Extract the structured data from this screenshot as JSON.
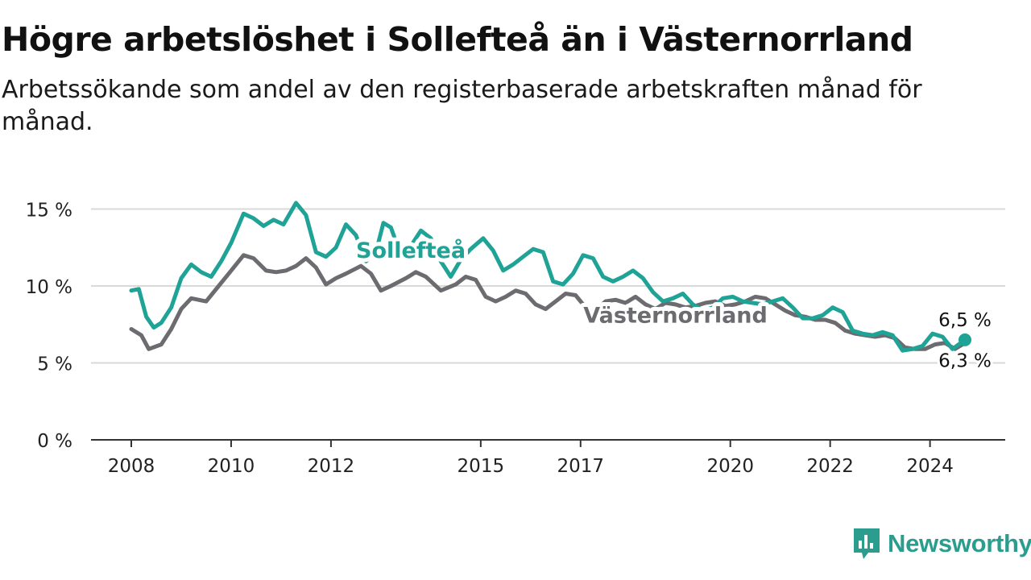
{
  "header": {
    "title": "Högre arbetslöshet i Sollefteå än i Västernorrland",
    "subtitle": "Arbetssökande som andel av den registerbaserade arbetskraften månad för månad."
  },
  "brand": {
    "name": "Newsworthy",
    "color": "#2a9d8f",
    "icon": "newsworthy-bar-chart-icon"
  },
  "chart_data": {
    "type": "line",
    "yticks": [
      "0 %",
      "5 %",
      "10 %",
      "15 %"
    ],
    "ytick_values": [
      0,
      5,
      10,
      15
    ],
    "xticks": [
      "2008",
      "2010",
      "2012",
      "2015",
      "2017",
      "2020",
      "2022",
      "2024"
    ],
    "ylim": [
      0,
      15.5
    ],
    "xlim": [
      2008,
      2024.7
    ],
    "grid": true,
    "series": [
      {
        "name": "Västernorrland",
        "color": "#6b6b70",
        "end_label": "6,3 %",
        "points": [
          [
            2008.0,
            7.2
          ],
          [
            2008.2,
            6.8
          ],
          [
            2008.35,
            5.9
          ],
          [
            2008.6,
            6.2
          ],
          [
            2008.8,
            7.2
          ],
          [
            2009.0,
            8.5
          ],
          [
            2009.2,
            9.2
          ],
          [
            2009.5,
            9.0
          ],
          [
            2009.75,
            10.0
          ],
          [
            2010.0,
            11.0
          ],
          [
            2010.25,
            12.0
          ],
          [
            2010.45,
            11.8
          ],
          [
            2010.7,
            11.0
          ],
          [
            2010.9,
            10.9
          ],
          [
            2011.1,
            11.0
          ],
          [
            2011.3,
            11.3
          ],
          [
            2011.5,
            11.8
          ],
          [
            2011.7,
            11.2
          ],
          [
            2011.9,
            10.1
          ],
          [
            2012.1,
            10.5
          ],
          [
            2012.3,
            10.8
          ],
          [
            2012.6,
            11.3
          ],
          [
            2012.8,
            10.8
          ],
          [
            2013.0,
            9.7
          ],
          [
            2013.2,
            10.0
          ],
          [
            2013.5,
            10.5
          ],
          [
            2013.7,
            10.9
          ],
          [
            2013.9,
            10.6
          ],
          [
            2014.2,
            9.7
          ],
          [
            2014.5,
            10.1
          ],
          [
            2014.7,
            10.6
          ],
          [
            2014.9,
            10.4
          ],
          [
            2015.1,
            9.3
          ],
          [
            2015.3,
            9.0
          ],
          [
            2015.5,
            9.3
          ],
          [
            2015.7,
            9.7
          ],
          [
            2015.9,
            9.5
          ],
          [
            2016.1,
            8.8
          ],
          [
            2016.3,
            8.5
          ],
          [
            2016.5,
            9.0
          ],
          [
            2016.7,
            9.5
          ],
          [
            2016.9,
            9.4
          ],
          [
            2017.1,
            8.6
          ],
          [
            2017.3,
            8.4
          ],
          [
            2017.5,
            9.0
          ],
          [
            2017.7,
            9.1
          ],
          [
            2017.9,
            8.9
          ],
          [
            2018.1,
            9.3
          ],
          [
            2018.3,
            8.8
          ],
          [
            2018.5,
            8.5
          ],
          [
            2018.7,
            8.9
          ],
          [
            2018.9,
            8.8
          ],
          [
            2019.1,
            8.6
          ],
          [
            2019.3,
            8.7
          ],
          [
            2019.5,
            8.9
          ],
          [
            2019.7,
            9.0
          ],
          [
            2019.9,
            8.7
          ],
          [
            2020.1,
            8.8
          ],
          [
            2020.3,
            9.0
          ],
          [
            2020.5,
            9.3
          ],
          [
            2020.7,
            9.2
          ],
          [
            2020.9,
            8.8
          ],
          [
            2021.1,
            8.4
          ],
          [
            2021.3,
            8.1
          ],
          [
            2021.5,
            8.0
          ],
          [
            2021.7,
            7.8
          ],
          [
            2021.9,
            7.8
          ],
          [
            2022.1,
            7.6
          ],
          [
            2022.3,
            7.1
          ],
          [
            2022.5,
            6.9
          ],
          [
            2022.7,
            6.8
          ],
          [
            2022.9,
            6.7
          ],
          [
            2023.1,
            6.8
          ],
          [
            2023.3,
            6.6
          ],
          [
            2023.5,
            6.0
          ],
          [
            2023.7,
            5.9
          ],
          [
            2023.9,
            5.9
          ],
          [
            2024.1,
            6.2
          ],
          [
            2024.3,
            6.3
          ],
          [
            2024.5,
            5.9
          ],
          [
            2024.7,
            6.3
          ]
        ]
      },
      {
        "name": "Sollefteå",
        "color": "#1fa396",
        "end_label": "6,5 %",
        "points": [
          [
            2008.0,
            9.7
          ],
          [
            2008.15,
            9.8
          ],
          [
            2008.3,
            8.0
          ],
          [
            2008.45,
            7.3
          ],
          [
            2008.6,
            7.6
          ],
          [
            2008.8,
            8.6
          ],
          [
            2009.0,
            10.5
          ],
          [
            2009.2,
            11.4
          ],
          [
            2009.4,
            10.9
          ],
          [
            2009.6,
            10.6
          ],
          [
            2009.8,
            11.6
          ],
          [
            2010.0,
            12.8
          ],
          [
            2010.25,
            14.7
          ],
          [
            2010.45,
            14.4
          ],
          [
            2010.65,
            13.9
          ],
          [
            2010.85,
            14.3
          ],
          [
            2011.05,
            14.0
          ],
          [
            2011.3,
            15.4
          ],
          [
            2011.5,
            14.6
          ],
          [
            2011.7,
            12.2
          ],
          [
            2011.9,
            11.9
          ],
          [
            2012.1,
            12.5
          ],
          [
            2012.3,
            14.0
          ],
          [
            2012.5,
            13.3
          ],
          [
            2012.7,
            11.6
          ],
          [
            2012.9,
            12.2
          ],
          [
            2013.05,
            14.1
          ],
          [
            2013.2,
            13.8
          ],
          [
            2013.4,
            12.0
          ],
          [
            2013.6,
            12.6
          ],
          [
            2013.8,
            13.6
          ],
          [
            2014.0,
            13.1
          ],
          [
            2014.2,
            11.6
          ],
          [
            2014.4,
            10.6
          ],
          [
            2014.6,
            11.7
          ],
          [
            2014.8,
            12.4
          ],
          [
            2015.05,
            13.1
          ],
          [
            2015.25,
            12.3
          ],
          [
            2015.45,
            11.0
          ],
          [
            2015.65,
            11.4
          ],
          [
            2015.85,
            11.9
          ],
          [
            2016.05,
            12.4
          ],
          [
            2016.25,
            12.2
          ],
          [
            2016.45,
            10.3
          ],
          [
            2016.65,
            10.1
          ],
          [
            2016.85,
            10.8
          ],
          [
            2017.05,
            12.0
          ],
          [
            2017.25,
            11.8
          ],
          [
            2017.45,
            10.6
          ],
          [
            2017.65,
            10.3
          ],
          [
            2017.85,
            10.6
          ],
          [
            2018.05,
            11.0
          ],
          [
            2018.25,
            10.5
          ],
          [
            2018.45,
            9.6
          ],
          [
            2018.65,
            9.0
          ],
          [
            2018.85,
            9.2
          ],
          [
            2019.05,
            9.5
          ],
          [
            2019.25,
            8.8
          ],
          [
            2019.45,
            8.4
          ],
          [
            2019.65,
            8.6
          ],
          [
            2019.85,
            9.2
          ],
          [
            2020.05,
            9.3
          ],
          [
            2020.25,
            9.0
          ],
          [
            2020.45,
            8.9
          ],
          [
            2020.65,
            8.8
          ],
          [
            2020.85,
            9.0
          ],
          [
            2021.05,
            9.2
          ],
          [
            2021.25,
            8.6
          ],
          [
            2021.45,
            7.9
          ],
          [
            2021.65,
            7.9
          ],
          [
            2021.85,
            8.1
          ],
          [
            2022.05,
            8.6
          ],
          [
            2022.25,
            8.3
          ],
          [
            2022.45,
            7.1
          ],
          [
            2022.65,
            6.9
          ],
          [
            2022.85,
            6.8
          ],
          [
            2023.05,
            7.0
          ],
          [
            2023.25,
            6.8
          ],
          [
            2023.45,
            5.8
          ],
          [
            2023.65,
            5.9
          ],
          [
            2023.85,
            6.1
          ],
          [
            2024.05,
            6.9
          ],
          [
            2024.25,
            6.7
          ],
          [
            2024.45,
            5.9
          ],
          [
            2024.7,
            6.5
          ]
        ]
      }
    ],
    "inline_labels": [
      {
        "series": "Sollefteå",
        "text": "Sollefteå",
        "x": 2013.6,
        "y": 12.3
      },
      {
        "series": "Västernorrland",
        "text": "Västernorrland",
        "x": 2018.9,
        "y": 8.1
      }
    ]
  }
}
